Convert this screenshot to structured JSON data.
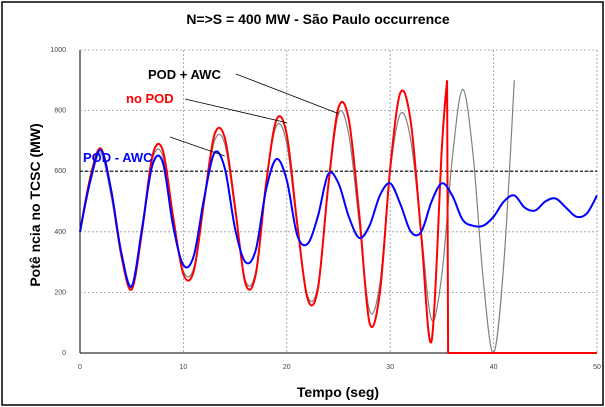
{
  "chart_data": {
    "type": "line",
    "title": "N=>S = 400 MW - São Paulo occurrence",
    "xlabel": "Tempo (seg)",
    "ylabel": "Potê ncia no TCSC (MW)",
    "xlim": [
      0,
      50
    ],
    "ylim": [
      0,
      1000
    ],
    "x_ticks": [
      0,
      10,
      20,
      30,
      40,
      50
    ],
    "y_ticks": [
      0,
      200,
      400,
      600,
      800,
      1000
    ],
    "grid": true,
    "reference_line": 600,
    "series": [
      {
        "name": "POD + AWC",
        "color": "#808080",
        "x": [
          0,
          1,
          2,
          3,
          4,
          5,
          6,
          7,
          8,
          9,
          10,
          11,
          12,
          13,
          14,
          15,
          16,
          17,
          18,
          19,
          20,
          21,
          22,
          23,
          24,
          25,
          26,
          27,
          28,
          29,
          30,
          31,
          32,
          33,
          34,
          35,
          36,
          37,
          38,
          39,
          40,
          41,
          42
        ],
        "y": [
          400,
          560,
          660,
          520,
          320,
          220,
          420,
          640,
          650,
          430,
          270,
          280,
          500,
          700,
          690,
          470,
          240,
          270,
          560,
          750,
          690,
          420,
          190,
          220,
          540,
          790,
          720,
          430,
          140,
          230,
          600,
          790,
          700,
          400,
          110,
          260,
          640,
          870,
          660,
          240,
          0,
          300,
          900
        ]
      },
      {
        "name": "no POD",
        "color": "#ff0000",
        "x": [
          0,
          1,
          2,
          3,
          4,
          5,
          6,
          7,
          8,
          9,
          10,
          11,
          12,
          13,
          14,
          15,
          16,
          17,
          18,
          19,
          20,
          21,
          22,
          23,
          24,
          25,
          26,
          27,
          28,
          29,
          30,
          31,
          32,
          33,
          34,
          35,
          35.5,
          35.6,
          50
        ],
        "y": [
          400,
          580,
          675,
          540,
          320,
          210,
          400,
          650,
          670,
          450,
          260,
          270,
          500,
          720,
          710,
          480,
          230,
          260,
          560,
          770,
          720,
          430,
          180,
          210,
          550,
          810,
          770,
          460,
          100,
          200,
          610,
          860,
          760,
          390,
          40,
          680,
          900,
          0,
          0
        ]
      },
      {
        "name": "POD - AWC",
        "color": "#0000ff",
        "x": [
          0,
          1,
          2,
          3,
          4,
          5,
          6,
          7,
          8,
          9,
          10,
          11,
          12,
          13,
          14,
          15,
          16,
          17,
          18,
          19,
          20,
          21,
          22,
          23,
          24,
          25,
          26,
          27,
          28,
          29,
          30,
          31,
          32,
          33,
          34,
          35,
          36,
          37,
          38,
          39,
          40,
          41,
          42,
          43,
          44,
          45,
          46,
          47,
          48,
          49,
          50
        ],
        "y": [
          400,
          570,
          670,
          540,
          330,
          220,
          410,
          620,
          630,
          420,
          290,
          320,
          510,
          660,
          610,
          410,
          300,
          340,
          540,
          640,
          570,
          390,
          360,
          450,
          590,
          560,
          450,
          380,
          420,
          520,
          560,
          490,
          400,
          400,
          500,
          560,
          520,
          440,
          420,
          420,
          450,
          500,
          520,
          480,
          470,
          500,
          510,
          480,
          450,
          460,
          520
        ]
      }
    ],
    "annotations": [
      {
        "text": "POD + AWC",
        "color": "#000000",
        "series": "POD + AWC",
        "target": [
          25,
          790
        ]
      },
      {
        "text": "no POD",
        "color": "#ff0000",
        "series": "no POD",
        "target": [
          20,
          760
        ]
      },
      {
        "text": "POD - AWC",
        "color": "#0000ff",
        "series": "POD - AWC",
        "target": [
          14,
          650
        ]
      }
    ]
  }
}
